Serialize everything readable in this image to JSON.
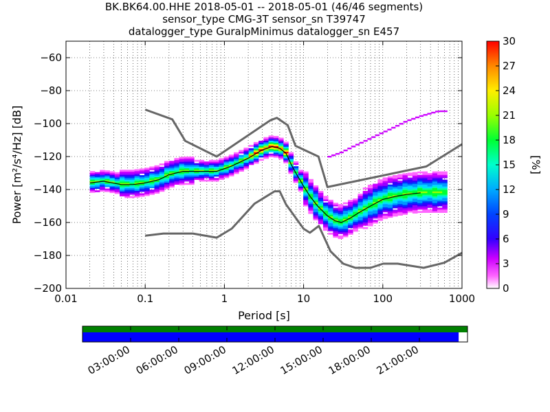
{
  "title_lines": [
    "BK.BK64.00.HHE   2018-05-01 -- 2018-05-01  (46/46 segments)",
    "sensor_type CMG-3T sensor_sn T39747",
    "datalogger_type GuralpMinimus datalogger_sn E457"
  ],
  "chart_data": {
    "type": "heatmap",
    "xlabel": "Period [s]",
    "ylabel": "Power [m²/s⁴/Hz] [dB]",
    "xscale": "log",
    "xlim": [
      0.01,
      1000
    ],
    "ylim": [
      -200,
      -50
    ],
    "xticks": [
      0.01,
      0.1,
      1,
      10,
      100,
      1000
    ],
    "xtick_labels": [
      "0.01",
      "0.1",
      "1",
      "10",
      "100",
      "1000"
    ],
    "yticks": [
      -200,
      -180,
      -160,
      -140,
      -120,
      -100,
      -80,
      -60
    ],
    "ytick_labels": [
      "−200",
      "−180",
      "−160",
      "−140",
      "−120",
      "−100",
      "−80",
      "−60"
    ],
    "grid": true,
    "colorbar": {
      "label": "[%]",
      "range": [
        0,
        30
      ],
      "ticks": [
        0,
        3,
        6,
        9,
        12,
        15,
        18,
        21,
        24,
        27,
        30
      ],
      "tick_labels": [
        "0",
        "3",
        "6",
        "9",
        "12",
        "15",
        "18",
        "21",
        "24",
        "27",
        "30"
      ]
    },
    "nhnm": {
      "name": "NHNM",
      "x": [
        0.1,
        0.22,
        0.32,
        0.8,
        3.8,
        4.6,
        6.3,
        7.9,
        15.4,
        20,
        354.8,
        1000
      ],
      "y": [
        -91.5,
        -97.4,
        -110.5,
        -120,
        -98,
        -96.5,
        -101,
        -113.5,
        -120,
        -138.5,
        -126,
        -112.5
      ]
    },
    "nlnm": {
      "name": "NLNM",
      "x": [
        0.1,
        0.17,
        0.4,
        0.8,
        1.24,
        2.4,
        4.3,
        5.0,
        6.0,
        10.0,
        12.0,
        15.6,
        21.9,
        31.6,
        45.0,
        70.0,
        101.0,
        154.0,
        328.0,
        600.0,
        1000.0
      ],
      "y": [
        -168,
        -166.7,
        -166.7,
        -169.2,
        -163.7,
        -148.6,
        -141.1,
        -141.1,
        -149,
        -163.8,
        -166.2,
        -162.1,
        -177.5,
        -185,
        -187.5,
        -187.5,
        -185,
        -185,
        -187.5,
        -184.4,
        -178.4
      ]
    },
    "mode_curve": {
      "x": [
        0.02,
        0.03,
        0.05,
        0.07,
        0.1,
        0.15,
        0.2,
        0.3,
        0.5,
        0.8,
        1.2,
        2.0,
        3.0,
        4.0,
        5.0,
        6.0,
        7.0,
        8.0,
        10.0,
        12.0,
        15.0,
        20.0,
        25.0,
        30.0,
        40.0,
        50.0,
        70.0,
        100.0,
        150.0,
        200.0,
        300.0
      ],
      "y": [
        -136,
        -135,
        -137,
        -137,
        -136,
        -134,
        -131,
        -129,
        -129,
        -129,
        -126,
        -121,
        -116,
        -114,
        -115,
        -118,
        -125,
        -130,
        -138,
        -144,
        -150,
        -156,
        -159,
        -160,
        -157,
        -154,
        -150,
        -146,
        -144,
        -143,
        -142
      ]
    },
    "high_curve": {
      "x": [
        20,
        30,
        40,
        60,
        100,
        150,
        200,
        300,
        500
      ],
      "y": [
        -121,
        -118,
        -115,
        -111,
        -106,
        -102,
        -99,
        -96,
        -93
      ]
    }
  },
  "timeline": {
    "tick_labels": [
      "03:00:00",
      "06:00:00",
      "09:00:00",
      "12:00:00",
      "15:00:00",
      "18:00:00",
      "21:00:00"
    ],
    "tick_hours": [
      3,
      6,
      9,
      12,
      15,
      18,
      21
    ],
    "hours_total": 24,
    "data_coverage_fraction": 0.977,
    "gap_coverage_fraction": 1.0,
    "data_color": "#0000ff",
    "gap_color": "#008000"
  },
  "colors": {
    "nm_curve": "#666666",
    "mode_curve": "#000000"
  }
}
